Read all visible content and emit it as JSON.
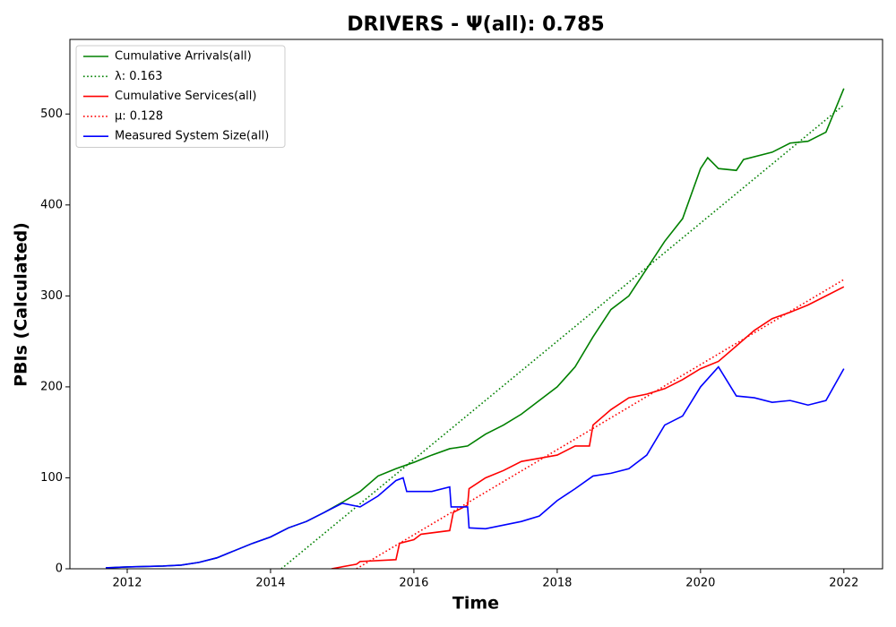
{
  "chart_data": {
    "type": "line",
    "title": "DRIVERS -  Ψ(all): 0.785",
    "xlabel": "Time",
    "ylabel": "PBIs (Calculated)",
    "xlim": [
      2011.2,
      2022.54
    ],
    "ylim": [
      0,
      582
    ],
    "xticks": [
      2012,
      2014,
      2016,
      2018,
      2020,
      2022
    ],
    "yticks": [
      0,
      100,
      200,
      300,
      400,
      500
    ],
    "legend": "upper left",
    "series": [
      {
        "name": "Cumulative Arrivals(all)",
        "color": "#008000",
        "style": "solid",
        "x": [
          2011.7,
          2012,
          2012.5,
          2012.75,
          2013,
          2013.25,
          2013.5,
          2013.75,
          2014,
          2014.25,
          2014.5,
          2014.75,
          2015,
          2015.25,
          2015.5,
          2015.75,
          2016,
          2016.25,
          2016.5,
          2016.75,
          2017,
          2017.25,
          2017.5,
          2017.75,
          2018,
          2018.25,
          2018.5,
          2018.75,
          2019,
          2019.25,
          2019.5,
          2019.75,
          2020,
          2020.1,
          2020.25,
          2020.5,
          2020.6,
          2021,
          2021.25,
          2021.5,
          2021.75,
          2022
        ],
        "values": [
          1,
          2,
          3,
          4,
          7,
          12,
          20,
          28,
          35,
          45,
          52,
          62,
          73,
          85,
          102,
          110,
          117,
          125,
          132,
          135,
          148,
          158,
          170,
          185,
          200,
          222,
          255,
          285,
          300,
          330,
          360,
          385,
          440,
          452,
          440,
          438,
          450,
          458,
          468,
          470,
          480,
          528
        ]
      },
      {
        "name": "λ: 0.163",
        "color": "#008000",
        "style": "dotted",
        "x": [
          2014.15,
          2022
        ],
        "values": [
          0,
          510
        ]
      },
      {
        "name": "Cumulative Services(all)",
        "color": "#ff0000",
        "style": "solid",
        "x": [
          2014.85,
          2015.2,
          2015.25,
          2015.75,
          2015.8,
          2016,
          2016.1,
          2016.5,
          2016.55,
          2016.75,
          2016.77,
          2017,
          2017.25,
          2017.5,
          2018,
          2018.25,
          2018.45,
          2018.5,
          2018.75,
          2019,
          2019.25,
          2019.5,
          2019.75,
          2020,
          2020.25,
          2020.5,
          2020.75,
          2021,
          2021.25,
          2021.5,
          2021.75,
          2022
        ],
        "values": [
          0,
          5,
          8,
          10,
          28,
          32,
          38,
          42,
          62,
          70,
          88,
          100,
          108,
          118,
          125,
          135,
          135,
          158,
          175,
          188,
          192,
          198,
          208,
          220,
          228,
          245,
          262,
          275,
          282,
          290,
          300,
          310
        ]
      },
      {
        "name": "μ: 0.128",
        "color": "#ff0000",
        "style": "dotted",
        "x": [
          2015.2,
          2022
        ],
        "values": [
          0,
          318
        ]
      },
      {
        "name": "Measured System Size(all)",
        "color": "#0000ff",
        "style": "solid",
        "x": [
          2011.7,
          2012,
          2012.5,
          2012.75,
          2013,
          2013.25,
          2013.5,
          2013.75,
          2014,
          2014.25,
          2014.5,
          2014.75,
          2015,
          2015.25,
          2015.5,
          2015.75,
          2015.85,
          2015.9,
          2016.25,
          2016.5,
          2016.52,
          2016.75,
          2016.77,
          2017,
          2017.5,
          2017.75,
          2018,
          2018.25,
          2018.5,
          2018.75,
          2019,
          2019.25,
          2019.5,
          2019.75,
          2020,
          2020.25,
          2020.5,
          2020.75,
          2021,
          2021.25,
          2021.5,
          2021.75,
          2022
        ],
        "values": [
          1,
          2,
          3,
          4,
          7,
          12,
          20,
          28,
          35,
          45,
          52,
          62,
          72,
          68,
          80,
          97,
          100,
          85,
          85,
          90,
          68,
          68,
          45,
          44,
          52,
          58,
          75,
          88,
          102,
          105,
          110,
          125,
          158,
          168,
          200,
          222,
          190,
          188,
          183,
          185,
          180,
          185,
          220
        ]
      }
    ]
  }
}
